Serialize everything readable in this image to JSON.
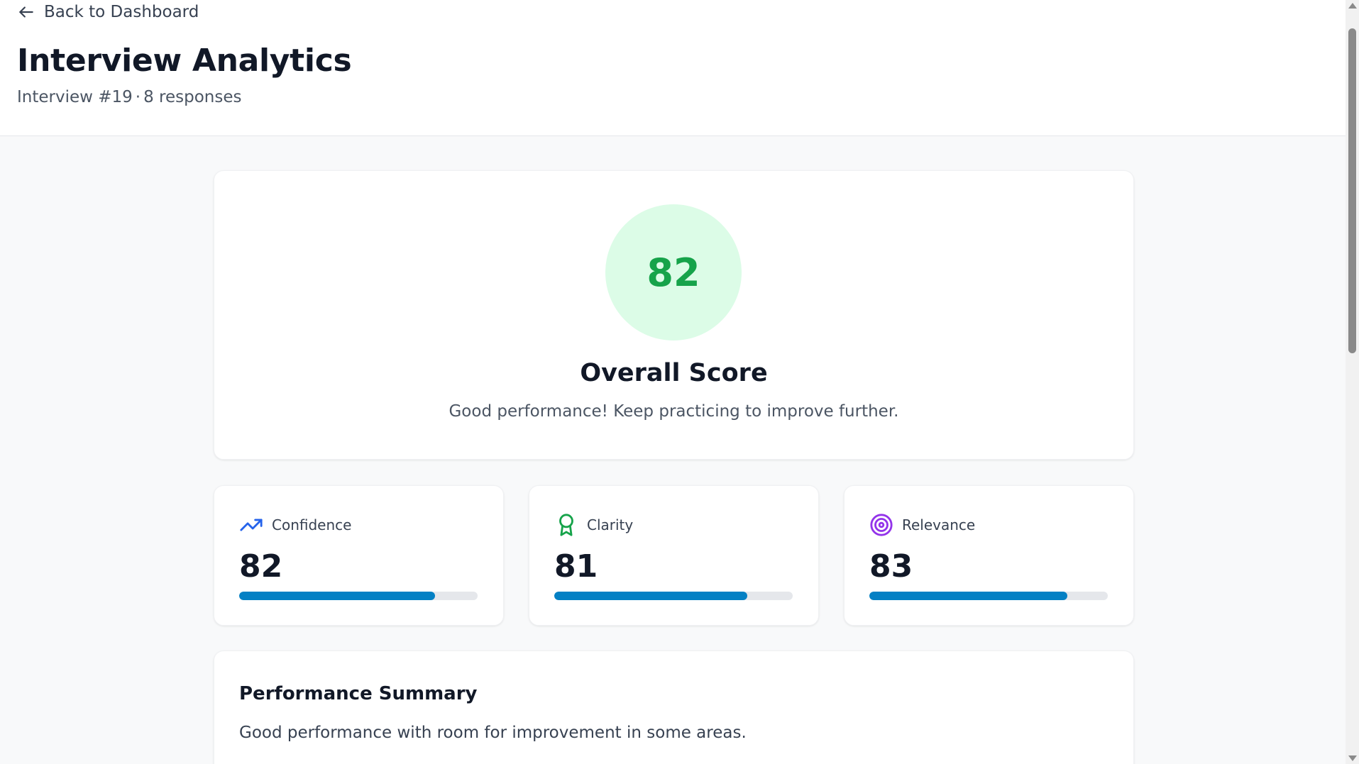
{
  "header": {
    "back_label": "Back to Dashboard",
    "title": "Interview Analytics",
    "interview_label": "Interview #19",
    "separator": "·",
    "responses_label": "8 responses"
  },
  "overall": {
    "score": "82",
    "score_color": "#16a34a",
    "circle_bg": "#dcfce7",
    "title": "Overall Score",
    "description": "Good performance! Keep practicing to improve further."
  },
  "metrics": [
    {
      "label": "Confidence",
      "value": "82",
      "progress": 0.82,
      "icon": "trending-up-icon",
      "icon_color": "#2563eb"
    },
    {
      "label": "Clarity",
      "value": "81",
      "progress": 0.81,
      "icon": "award-icon",
      "icon_color": "#16a34a"
    },
    {
      "label": "Relevance",
      "value": "83",
      "progress": 0.83,
      "icon": "target-icon",
      "icon_color": "#9333ea"
    }
  ],
  "summary": {
    "title": "Performance Summary",
    "text": "Good performance with room for improvement in some areas."
  },
  "colors": {
    "progress_fill": "#0480c4",
    "progress_track": "#e5e7eb"
  }
}
